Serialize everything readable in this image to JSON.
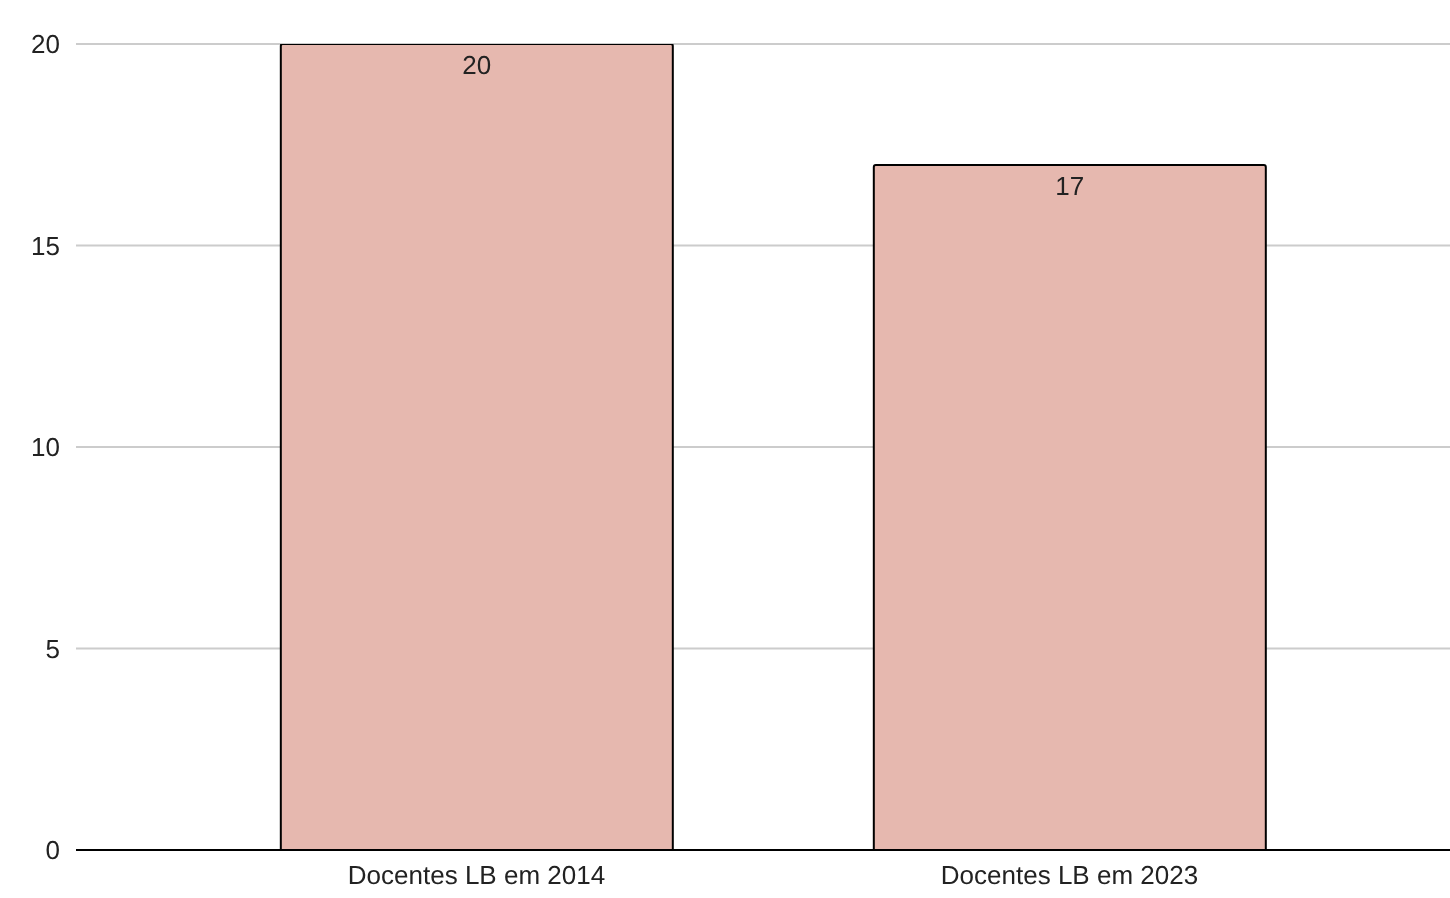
{
  "chart_data": {
    "type": "bar",
    "categories": [
      "Docentes LB em 2014",
      "Docentes LB em 2023"
    ],
    "values": [
      20,
      17
    ],
    "color": "#e6b8af",
    "ylim": [
      0,
      20
    ],
    "yticks": [
      0,
      5,
      10,
      15,
      20
    ],
    "grid": "y",
    "data_labels": true
  }
}
